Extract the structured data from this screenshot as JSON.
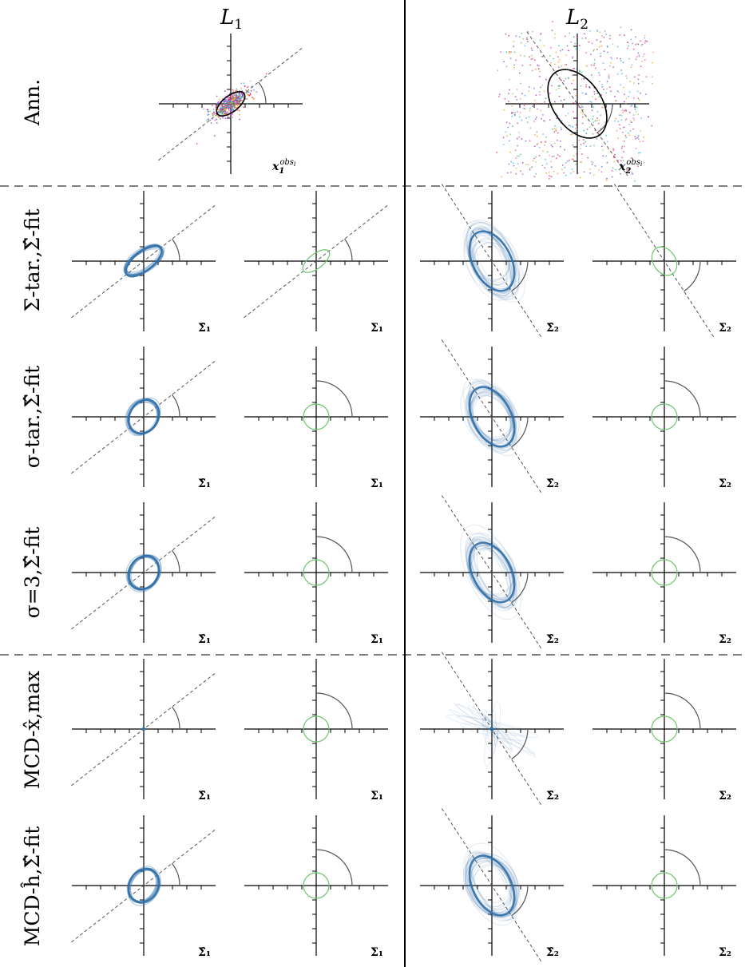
{
  "columns": [
    {
      "key": "L1",
      "label_main": "L",
      "label_sub": "1"
    },
    {
      "key": "L2",
      "label_main": "L",
      "label_sub": "2"
    }
  ],
  "rows": [
    {
      "key": "ann",
      "label": "Ann."
    },
    {
      "key": "sigma_tar",
      "label": "Σ-tar.,Σ̂-fit"
    },
    {
      "key": "sig_tar",
      "label": "σ-tar.,Σ̂-fit"
    },
    {
      "key": "sig3",
      "label": "σ=3,Σ̂-fit"
    },
    {
      "key": "mcd_max",
      "label": "MCD-x̂,max"
    },
    {
      "key": "mcd_h",
      "label": "MCD-ĥ,Σ̂-fit"
    }
  ],
  "annotation_tags": {
    "L1": {
      "main": "x",
      "sub": "1",
      "sup": "obs",
      "sup_sub": "i"
    },
    "L2": {
      "main": "x",
      "sub": "2",
      "sup": "obs",
      "sup_sub": "i"
    }
  },
  "panel_tags": {
    "fit_L1": "Σ̂₁",
    "target_L1": "Σ₁",
    "fit_L2": "Σ̂₂",
    "target_L2": "Σ₂"
  },
  "colors": {
    "fit_ellipse": "#2f6fa8",
    "target_ellipse": "#6cc56c",
    "dashed_line": "#555555",
    "axis": "#000000",
    "arc": "#555555"
  }
}
